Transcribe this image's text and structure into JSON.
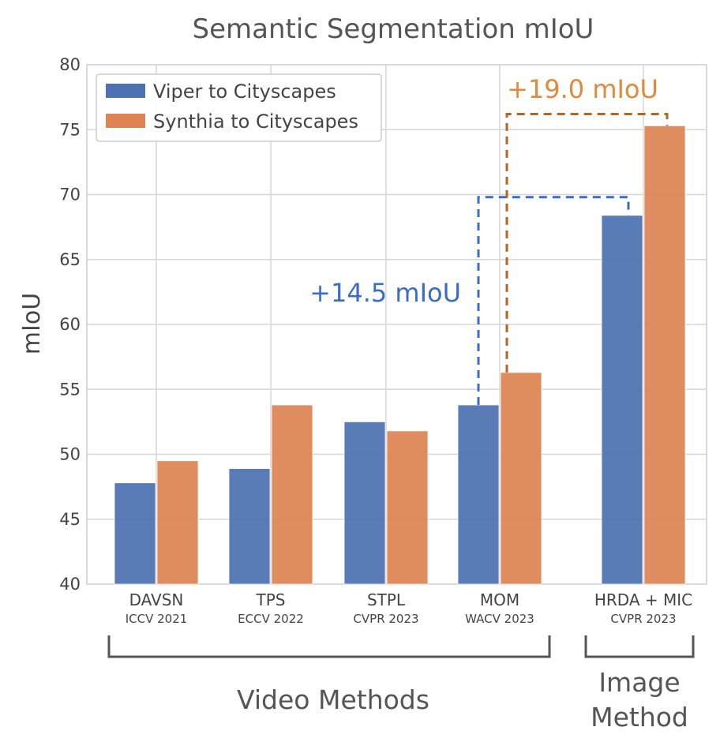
{
  "chart_data": {
    "type": "bar",
    "title": "Semantic Segmentation mIoU",
    "ylabel": "mIoU",
    "xlabel": "",
    "ylim": [
      40,
      80
    ],
    "yticks": [
      40,
      45,
      50,
      55,
      60,
      65,
      70,
      75,
      80
    ],
    "grid": true,
    "legend_position": "top-left",
    "categories": [
      "DAVSN",
      "TPS",
      "STPL",
      "MOM",
      "HRDA + MIC"
    ],
    "category_sublabels": [
      "ICCV 2021",
      "ECCV 2022",
      "CVPR 2023",
      "WACV 2023",
      "CVPR 2023"
    ],
    "series": [
      {
        "name": "Viper to Cityscapes",
        "color": "#4c72b0",
        "values": [
          47.8,
          48.9,
          52.5,
          53.8,
          68.4
        ]
      },
      {
        "name": "Synthia to Cityscapes",
        "color": "#dd8452",
        "values": [
          49.5,
          53.8,
          51.8,
          56.3,
          75.3
        ]
      }
    ],
    "groups": [
      {
        "label": "Video Methods",
        "categories": [
          "DAVSN",
          "TPS",
          "STPL",
          "MOM"
        ]
      },
      {
        "label_lines": [
          "Image",
          "Method"
        ],
        "categories": [
          "HRDA + MIC"
        ]
      }
    ],
    "annotations": [
      {
        "text": "+14.5 mIoU",
        "color": "#3a6cc8",
        "from": "MOM / Viper to Cityscapes",
        "to": "HRDA + MIC / Viper to Cityscapes",
        "value_from": 53.8,
        "value_to": 69.8
      },
      {
        "text": "+19.0 mIoU",
        "color": "#b8641e",
        "text_color": "#e08a3c",
        "from": "MOM / Synthia to Cityscapes",
        "to": "HRDA + MIC / Synthia to Cityscapes",
        "value_from": 56.3,
        "value_to": 76.2
      }
    ]
  }
}
